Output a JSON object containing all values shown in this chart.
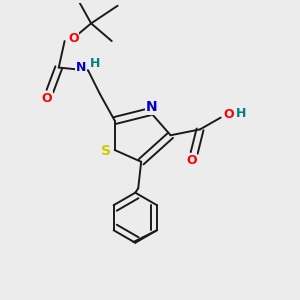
{
  "background_color": "#ececec",
  "figsize": [
    3.0,
    3.0
  ],
  "dpi": 100,
  "colors": {
    "S": "#cccc00",
    "N_thiazole": "#0000cc",
    "N_nh": "#0000cc",
    "O": "#ff0000",
    "H": "#008080",
    "bond": "#1a1a1a"
  },
  "lw": 1.4,
  "dbo": 0.012
}
